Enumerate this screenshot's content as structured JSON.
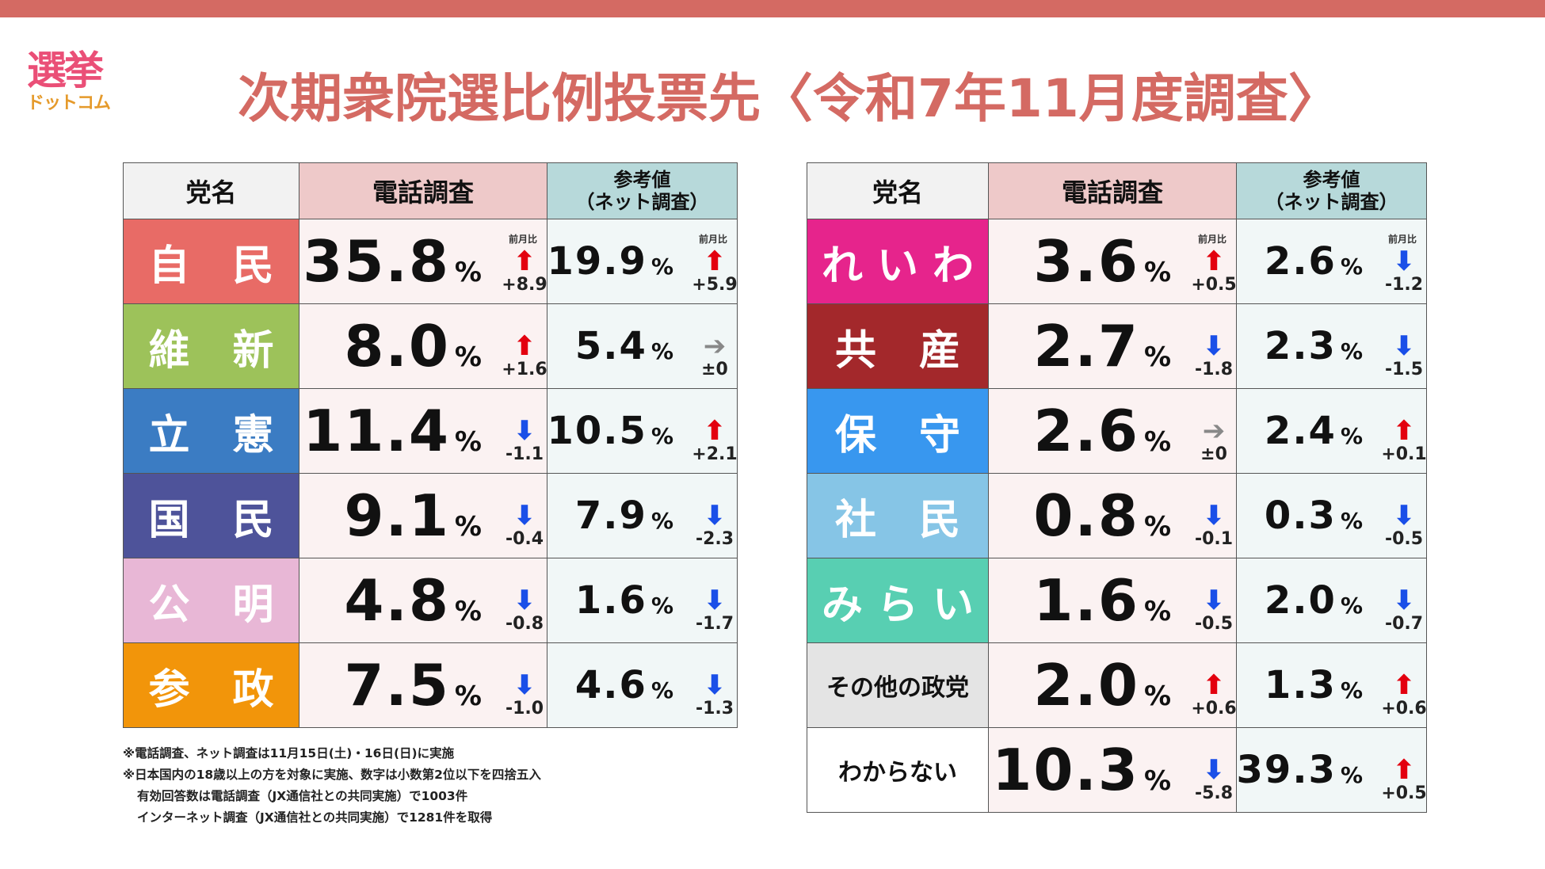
{
  "logo": {
    "line1": "選挙",
    "line2": "ドットコム"
  },
  "title": "次期衆院選比例投票先〈令和7年11月度調査〉",
  "table_headers": {
    "party": "党名",
    "phone": "電話調査",
    "net_line1": "参考値",
    "net_line2": "（ネット調査）",
    "prev_label": "前月比"
  },
  "percent": "%",
  "colors": {
    "up": "#e3000f",
    "down": "#1a4fe8",
    "flat": "#888888",
    "title": "#d46a63"
  },
  "chart_data": {
    "type": "table",
    "columns": [
      "党名",
      "電話調査",
      "前月比",
      "参考値（ネット調査）",
      "前月比"
    ],
    "unit": "%",
    "left_rows": [
      {
        "party": "自 民",
        "color": "#e86b66",
        "phone": "35.8",
        "phone_diff": "+8.9",
        "phone_dir": "up",
        "net": "19.9",
        "net_diff": "+5.9",
        "net_dir": "up"
      },
      {
        "party": "維 新",
        "color": "#9dc25a",
        "phone": "8.0",
        "phone_diff": "+1.6",
        "phone_dir": "up",
        "net": "5.4",
        "net_diff": "±0",
        "net_dir": "flat"
      },
      {
        "party": "立 憲",
        "color": "#3b7cc3",
        "phone": "11.4",
        "phone_diff": "-1.1",
        "phone_dir": "down",
        "net": "10.5",
        "net_diff": "+2.1",
        "net_dir": "up"
      },
      {
        "party": "国 民",
        "color": "#4e539a",
        "phone": "9.1",
        "phone_diff": "-0.4",
        "phone_dir": "down",
        "net": "7.9",
        "net_diff": "-2.3",
        "net_dir": "down"
      },
      {
        "party": "公 明",
        "color": "#e8b7d6",
        "phone": "4.8",
        "phone_diff": "-0.8",
        "phone_dir": "down",
        "net": "1.6",
        "net_diff": "-1.7",
        "net_dir": "down"
      },
      {
        "party": "参 政",
        "color": "#f2950a",
        "phone": "7.5",
        "phone_diff": "-1.0",
        "phone_dir": "down",
        "net": "4.6",
        "net_diff": "-1.3",
        "net_dir": "down"
      }
    ],
    "right_rows": [
      {
        "party": "れいわ",
        "color": "#e6248c",
        "phone": "3.6",
        "phone_diff": "+0.5",
        "phone_dir": "up",
        "net": "2.6",
        "net_diff": "-1.2",
        "net_dir": "down"
      },
      {
        "party": "共 産",
        "color": "#a3282b",
        "phone": "2.7",
        "phone_diff": "-1.8",
        "phone_dir": "down",
        "net": "2.3",
        "net_diff": "-1.5",
        "net_dir": "down"
      },
      {
        "party": "保 守",
        "color": "#3897ef",
        "phone": "2.6",
        "phone_diff": "±0",
        "phone_dir": "flat",
        "net": "2.4",
        "net_diff": "+0.1",
        "net_dir": "up"
      },
      {
        "party": "社 民",
        "color": "#86c5e6",
        "phone": "0.8",
        "phone_diff": "-0.1",
        "phone_dir": "down",
        "net": "0.3",
        "net_diff": "-0.5",
        "net_dir": "down"
      },
      {
        "party": "みらい",
        "color": "#58cfb2",
        "phone": "1.6",
        "phone_diff": "-0.5",
        "phone_dir": "down",
        "net": "2.0",
        "net_diff": "-0.7",
        "net_dir": "down"
      },
      {
        "party": "その他の政党",
        "color": "#e4e4e4",
        "phone": "2.0",
        "phone_diff": "+0.6",
        "phone_dir": "up",
        "net": "1.3",
        "net_diff": "+0.6",
        "net_dir": "up"
      },
      {
        "party": "わからない",
        "color": "#ffffff",
        "phone": "10.3",
        "phone_diff": "-5.8",
        "phone_dir": "down",
        "net": "39.3",
        "net_diff": "+0.5",
        "net_dir": "up"
      }
    ]
  },
  "notes": [
    "※電話調査、ネット調査は11月15日(土)・16日(日)に実施",
    "※日本国内の18歳以上の方を対象に実施、数字は小数第2位以下を四捨五入",
    "有効回答数は電話調査（JX通信社との共同実施）で1003件",
    "インターネット調査（JX通信社との共同実施）で1281件を取得"
  ]
}
